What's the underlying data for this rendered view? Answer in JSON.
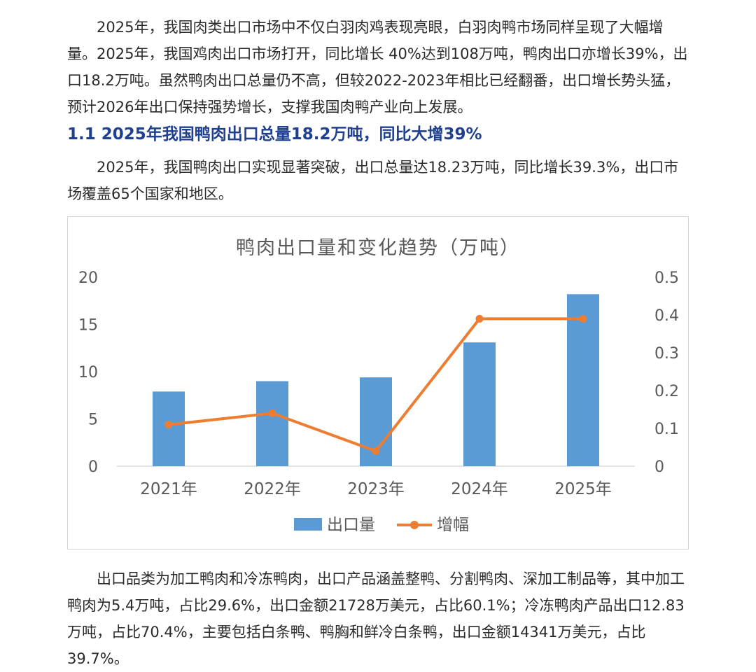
{
  "article": {
    "paragraph1": "2025年，我国肉类出口市场中不仅白羽肉鸡表现亮眼，白羽肉鸭市场同样呈现了大幅增量。2025年，我国鸡肉出口市场打开，同比增长 40%达到108万吨，鸭肉出口亦增长39%，出口18.2万吨。虽然鸭肉出口总量仍不高，但较2022-2023年相比已经翻番，出口增长势头猛，预计2026年出口保持强势增长，支撑我国肉鸭产业向上发展。",
    "heading": "1.1 2025年我国鸭肉出口总量18.2万吨，同比大增39%",
    "paragraph2": "2025年，我国鸭肉出口实现显著突破，出口总量达18.23万吨，同比增长39.3%，出口市场覆盖65个国家和地区。",
    "paragraph3": "出口品类为加工鸭肉和冷冻鸭肉，出口产品涵盖整鸭、分割鸭肉、深加工制品等，其中加工鸭肉为5.4万吨，占比29.6%，出口金额21728万美元，占比60.1%；冷冻鸭肉产品出口12.83万吨，占比70.4%，主要包括白条鸭、鸭胸和鲜冷白条鸭，出口金额14341万美元，占比39.7%。"
  },
  "chart_data": {
    "type": "bar",
    "title": "鸭肉出口量和变化趋势（万吨）",
    "categories": [
      "2021年",
      "2022年",
      "2023年",
      "2024年",
      "2025年"
    ],
    "series": [
      {
        "name": "出口量",
        "type": "bar",
        "axis": "left",
        "color": "#5b9bd5",
        "values": [
          7.9,
          9.0,
          9.4,
          13.1,
          18.2
        ]
      },
      {
        "name": "增幅",
        "type": "line",
        "axis": "right",
        "color": "#ed7d31",
        "values": [
          0.11,
          0.14,
          0.04,
          0.39,
          0.39
        ]
      }
    ],
    "y_left": {
      "ylim": [
        0,
        20
      ],
      "ticks": [
        "0",
        "5",
        "10",
        "15",
        "20"
      ]
    },
    "y_right": {
      "ylim": [
        0,
        0.5
      ],
      "ticks": [
        "0",
        "0.1",
        "0.2",
        "0.3",
        "0.4",
        "0.5"
      ]
    },
    "grid": false,
    "legend": "bottom"
  }
}
